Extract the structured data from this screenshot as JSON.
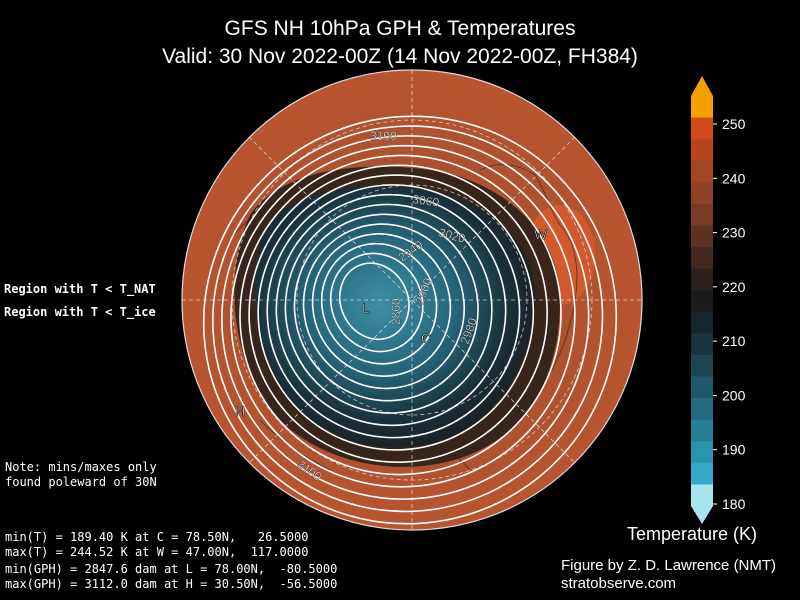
{
  "title": {
    "line1": "GFS NH 10hPa GPH & Temperatures",
    "line2": "Valid: 30 Nov 2022-00Z  (14 Nov 2022-00Z, FH384)"
  },
  "legend": {
    "nat": {
      "label": "Region with T < T_NAT",
      "color": "#ff33ff"
    },
    "ice": {
      "label": "Region with T < T_ice",
      "color": "#7fff00"
    }
  },
  "note": [
    "Note: mins/maxes only",
    "found poleward of 30N"
  ],
  "stats": [
    "min(T) = 189.40 K at C = 78.50N,   26.5000",
    "max(T) = 244.52 K at W = 47.00N,  117.0000",
    "min(GPH) = 2847.6 dam at L = 78.00N,  -80.5000",
    "max(GPH) = 3112.0 dam at H = 30.50N,  -56.5000"
  ],
  "credit": [
    "Figure by Z. D. Lawrence (NMT)",
    "stratobserve.com"
  ],
  "colorbar": {
    "title": "Temperature (K)",
    "ticks": [
      "250",
      "240",
      "230",
      "220",
      "210",
      "200",
      "190",
      "180"
    ],
    "colors": [
      "#f5a000",
      "#d14a1c",
      "#b9451f",
      "#a34522",
      "#8f4226",
      "#7a3b25",
      "#5e3222",
      "#44291e",
      "#2b201c",
      "#1b1b1b",
      "#17262c",
      "#1a3540",
      "#1d4655",
      "#20576a",
      "#236a80",
      "#267d96",
      "#2a93ae",
      "#32a8c6",
      "#a8e4f0"
    ]
  },
  "map": {
    "markers": [
      {
        "id": "L",
        "label": "L"
      },
      {
        "id": "C",
        "label": "C"
      },
      {
        "id": "W",
        "label": "W"
      },
      {
        "id": "H",
        "label": "H"
      }
    ],
    "contour_labels": [
      "3100",
      "3060",
      "3020",
      "2940",
      "2900",
      "2860",
      "2980",
      "3100"
    ]
  }
}
